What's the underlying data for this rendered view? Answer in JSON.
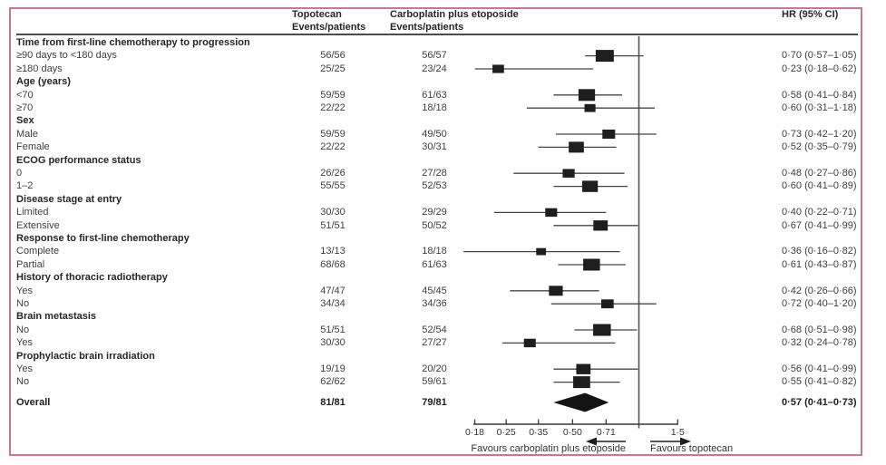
{
  "colors": {
    "frame_border": "#c27a90",
    "ink": "#1e1e1e",
    "text": "#3f3f3f",
    "rule": "#4c4c4c"
  },
  "header": {
    "topotecan": {
      "line1": "Topotecan",
      "line2": "Events/patients"
    },
    "carboplatin": {
      "line1": "Carboplatin plus etoposide",
      "line2": "Events/patients"
    },
    "hr": "HR (95% CI)"
  },
  "chart_data": {
    "type": "forest",
    "scale": "log",
    "ref_line": 1.0,
    "x_ticks": [
      {
        "value": 0.18,
        "label": "0·18"
      },
      {
        "value": 0.25,
        "label": "0·25"
      },
      {
        "value": 0.35,
        "label": "0·35"
      },
      {
        "value": 0.5,
        "label": "0·50"
      },
      {
        "value": 0.71,
        "label": "0·71"
      },
      {
        "value": 1.5,
        "label": "1·5"
      }
    ],
    "arrows": {
      "left": "Favours carboplatin plus etoposide",
      "right": "Favours topotecan"
    },
    "rows": [
      {
        "kind": "section",
        "label": "Time from first-line chemotherapy to progression"
      },
      {
        "kind": "data",
        "label": "≥90 days to <180 days",
        "topotecan": "56/56",
        "carboplatin": "56/57",
        "hr": 0.7,
        "ci_low": 0.57,
        "ci_high": 1.05,
        "hr_text": "0·70 (0·57–1·05)"
      },
      {
        "kind": "data",
        "label": "≥180 days",
        "topotecan": "25/25",
        "carboplatin": "23/24",
        "hr": 0.23,
        "ci_low": 0.18,
        "ci_high": 0.62,
        "hr_text": "0·23 (0·18–0·62)"
      },
      {
        "kind": "section",
        "label": "Age (years)"
      },
      {
        "kind": "data",
        "label": "<70",
        "topotecan": "59/59",
        "carboplatin": "61/63",
        "hr": 0.58,
        "ci_low": 0.41,
        "ci_high": 0.84,
        "hr_text": "0·58 (0·41–0·84)"
      },
      {
        "kind": "data",
        "label": "≥70",
        "topotecan": "22/22",
        "carboplatin": "18/18",
        "hr": 0.6,
        "ci_low": 0.31,
        "ci_high": 1.18,
        "hr_text": "0·60 (0·31–1·18)"
      },
      {
        "kind": "section",
        "label": "Sex"
      },
      {
        "kind": "data",
        "label": "Male",
        "topotecan": "59/59",
        "carboplatin": "49/50",
        "hr": 0.73,
        "ci_low": 0.42,
        "ci_high": 1.2,
        "hr_text": "0·73 (0·42–1·20)"
      },
      {
        "kind": "data",
        "label": "Female",
        "topotecan": "22/22",
        "carboplatin": "30/31",
        "hr": 0.52,
        "ci_low": 0.35,
        "ci_high": 0.79,
        "hr_text": "0·52 (0·35–0·79)"
      },
      {
        "kind": "section",
        "label": "ECOG performance status"
      },
      {
        "kind": "data",
        "label": "0",
        "topotecan": "26/26",
        "carboplatin": "27/28",
        "hr": 0.48,
        "ci_low": 0.27,
        "ci_high": 0.86,
        "hr_text": "0·48 (0·27–0·86)"
      },
      {
        "kind": "data",
        "label": "1–2",
        "topotecan": "55/55",
        "carboplatin": "52/53",
        "hr": 0.6,
        "ci_low": 0.41,
        "ci_high": 0.89,
        "hr_text": "0·60 (0·41–0·89)"
      },
      {
        "kind": "section",
        "label": "Disease stage at entry"
      },
      {
        "kind": "data",
        "label": "Limited",
        "topotecan": "30/30",
        "carboplatin": "29/29",
        "hr": 0.4,
        "ci_low": 0.22,
        "ci_high": 0.71,
        "hr_text": "0·40 (0·22–0·71)"
      },
      {
        "kind": "data",
        "label": "Extensive",
        "topotecan": "51/51",
        "carboplatin": "50/52",
        "hr": 0.67,
        "ci_low": 0.41,
        "ci_high": 0.99,
        "hr_text": "0·67 (0·41–0·99)"
      },
      {
        "kind": "section",
        "label": "Response to first-line chemotherapy"
      },
      {
        "kind": "data",
        "label": "Complete",
        "topotecan": "13/13",
        "carboplatin": "18/18",
        "hr": 0.36,
        "ci_low": 0.16,
        "ci_high": 0.82,
        "hr_text": "0·36 (0·16–0·82)"
      },
      {
        "kind": "data",
        "label": "Partial",
        "topotecan": "68/68",
        "carboplatin": "61/63",
        "hr": 0.61,
        "ci_low": 0.43,
        "ci_high": 0.87,
        "hr_text": "0·61 (0·43–0·87)"
      },
      {
        "kind": "section",
        "label": "History of thoracic radiotherapy"
      },
      {
        "kind": "data",
        "label": "Yes",
        "topotecan": "47/47",
        "carboplatin": "45/45",
        "hr": 0.42,
        "ci_low": 0.26,
        "ci_high": 0.66,
        "hr_text": "0·42 (0·26–0·66)"
      },
      {
        "kind": "data",
        "label": "No",
        "topotecan": "34/34",
        "carboplatin": "34/36",
        "hr": 0.72,
        "ci_low": 0.4,
        "ci_high": 1.2,
        "hr_text": "0·72 (0·40–1·20)"
      },
      {
        "kind": "section",
        "label": "Brain metastasis"
      },
      {
        "kind": "data",
        "label": "No",
        "topotecan": "51/51",
        "carboplatin": "52/54",
        "hr": 0.68,
        "ci_low": 0.51,
        "ci_high": 0.98,
        "hr_text": "0·68 (0·51–0·98)"
      },
      {
        "kind": "data",
        "label": "Yes",
        "topotecan": "30/30",
        "carboplatin": "27/27",
        "hr": 0.32,
        "ci_low": 0.24,
        "ci_high": 0.78,
        "hr_text": "0·32 (0·24–0·78)"
      },
      {
        "kind": "section",
        "label": "Prophylactic brain irradiation"
      },
      {
        "kind": "data",
        "label": "Yes",
        "topotecan": "19/19",
        "carboplatin": "20/20",
        "hr": 0.56,
        "ci_low": 0.41,
        "ci_high": 0.99,
        "hr_text": "0·56 (0·41–0·99)"
      },
      {
        "kind": "data",
        "label": "No",
        "topotecan": "62/62",
        "carboplatin": "59/61",
        "hr": 0.55,
        "ci_low": 0.41,
        "ci_high": 0.82,
        "hr_text": "0·55 (0·41–0·82)"
      },
      {
        "kind": "overall",
        "label": "Overall",
        "topotecan": "81/81",
        "carboplatin": "79/81",
        "hr": 0.57,
        "ci_low": 0.41,
        "ci_high": 0.73,
        "hr_text": "0·57 (0·41–0·73)"
      }
    ]
  }
}
